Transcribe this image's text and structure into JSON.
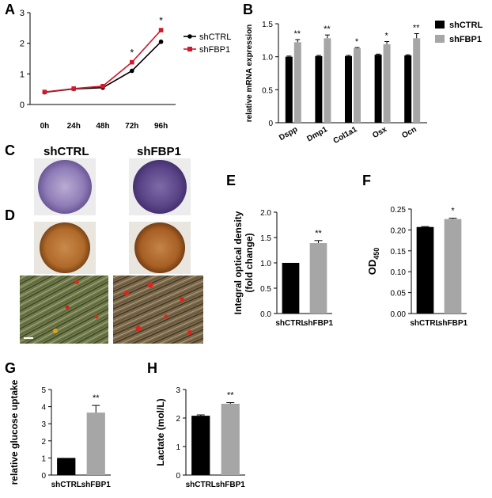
{
  "figure": {
    "panel_letters": [
      "A",
      "B",
      "C",
      "D",
      "E",
      "F",
      "G",
      "H"
    ],
    "photo_labels": [
      "shCTRL",
      "shFBP1"
    ]
  },
  "colors": {
    "shCTRL": "#000000",
    "shFBP1": "#d0192b",
    "shFBP1_bar": "#a6a6a6",
    "alp_stain": "#6b4f92",
    "ars_stain": "#b06a2a"
  },
  "chart_data": [
    {
      "panel": "A",
      "type": "line",
      "categories": [
        "0h",
        "24h",
        "48h",
        "72h",
        "96h"
      ],
      "series": [
        {
          "name": "shCTRL",
          "values": [
            0.4,
            0.51,
            0.55,
            1.1,
            2.05
          ]
        },
        {
          "name": "shFBP1",
          "values": [
            0.41,
            0.52,
            0.6,
            1.38,
            2.43
          ]
        }
      ],
      "significance": [
        "",
        "",
        "",
        "*",
        "*"
      ],
      "ylim": [
        0,
        3
      ],
      "yticks": [
        "0",
        "1",
        "2",
        "3"
      ],
      "legend": "right",
      "xlabel": "",
      "ylabel": ""
    },
    {
      "panel": "B",
      "type": "bar",
      "categories": [
        "Dspp",
        "Dmp1",
        "Col1a1",
        "Osx",
        "Ocn"
      ],
      "series": [
        {
          "name": "shCTRL",
          "values": [
            1.0,
            1.01,
            1.01,
            1.03,
            1.02
          ],
          "errors": [
            0.01,
            0.01,
            0.01,
            0.01,
            0.01
          ]
        },
        {
          "name": "shFBP1",
          "values": [
            1.22,
            1.28,
            1.13,
            1.19,
            1.28
          ],
          "errors": [
            0.04,
            0.05,
            0.01,
            0.04,
            0.07
          ]
        }
      ],
      "significance": [
        "**",
        "**",
        "*",
        "*",
        "**"
      ],
      "ylim": [
        0,
        1.5
      ],
      "yticks": [
        "0",
        "0.5",
        "1.0",
        "1.5"
      ],
      "ylabel": "relative mRNA expression",
      "xlabel": "",
      "legend": "top-right"
    },
    {
      "panel": "E",
      "type": "bar",
      "categories": [
        "shCTRL",
        "shFBP1"
      ],
      "values": [
        1.0,
        1.39
      ],
      "errors": [
        0.0,
        0.05
      ],
      "significance": [
        "",
        "**"
      ],
      "ylim": [
        0,
        2.0
      ],
      "yticks": [
        "0.0",
        "0.5",
        "1.0",
        "1.5",
        "2.0"
      ],
      "ylabel": "Integral optical density",
      "ylabel2": "(fold change)",
      "xlabel": ""
    },
    {
      "panel": "F",
      "type": "bar",
      "categories": [
        "shCTRL",
        "shFBP1"
      ],
      "values": [
        0.207,
        0.226
      ],
      "errors": [
        0.001,
        0.002
      ],
      "significance": [
        "",
        "*"
      ],
      "ylim": [
        0,
        0.25
      ],
      "yticks": [
        "0.00",
        "0.05",
        "0.10",
        "0.15",
        "0.20",
        "0.25"
      ],
      "ylabel": "OD",
      "ylabel_sub": "450",
      "xlabel": ""
    },
    {
      "panel": "G",
      "type": "bar",
      "categories": [
        "shCTRL",
        "shFBP1"
      ],
      "values": [
        1.0,
        3.65
      ],
      "errors": [
        0.0,
        0.42
      ],
      "significance": [
        "",
        "**"
      ],
      "ylim": [
        0,
        5
      ],
      "yticks": [
        "0",
        "1",
        "2",
        "3",
        "4",
        "5"
      ],
      "ylabel": "relative glucose uptake",
      "xlabel": ""
    },
    {
      "panel": "H",
      "type": "bar",
      "categories": [
        "shCTRL",
        "shFBP1"
      ],
      "values": [
        2.08,
        2.5
      ],
      "errors": [
        0.03,
        0.04
      ],
      "significance": [
        "",
        "**"
      ],
      "ylim": [
        0,
        3
      ],
      "yticks": [
        "0",
        "1",
        "2",
        "3"
      ],
      "ylabel": "Lactate (mol/L)",
      "xlabel": ""
    }
  ]
}
